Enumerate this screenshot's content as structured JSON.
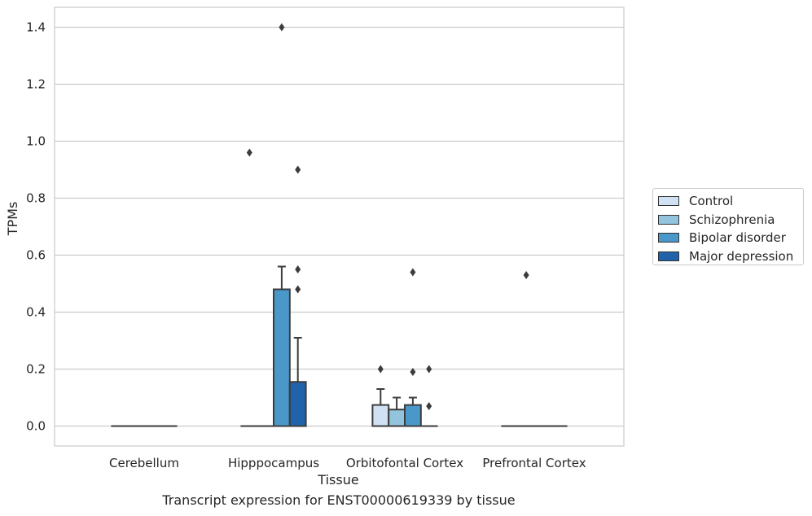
{
  "chart_data": {
    "type": "bar",
    "title": "",
    "caption": "Transcript expression for ENST00000619339 by tissue",
    "xlabel": "Tissue",
    "ylabel": "TPMs",
    "ylim": [
      -0.07,
      1.47
    ],
    "yticks": [
      "0.0",
      "0.2",
      "0.4",
      "0.6",
      "0.8",
      "1.0",
      "1.2",
      "1.4"
    ],
    "ytick_values": [
      0.0,
      0.2,
      0.4,
      0.6,
      0.8,
      1.0,
      1.2,
      1.4
    ],
    "grid": true,
    "legend_position": "right",
    "categories": [
      "Cerebellum",
      "Hipppocampus",
      "Orbitofontal Cortex",
      "Prefrontal Cortex"
    ],
    "series": [
      {
        "name": "Control",
        "color": "#cfe1f2",
        "values": [
          0.0,
          0.0,
          0.074,
          0.0
        ],
        "err_upper": [
          0.0,
          0.0,
          0.13,
          0.0
        ],
        "outliers": [
          [],
          [
            0.96
          ],
          [
            0.2
          ],
          []
        ]
      },
      {
        "name": "Schizophrenia",
        "color": "#93c4de",
        "values": [
          0.0,
          0.0,
          0.058,
          0.0
        ],
        "err_upper": [
          0.0,
          0.0,
          0.1,
          0.0
        ],
        "outliers": [
          [],
          [],
          [],
          [
            0.53
          ]
        ]
      },
      {
        "name": "Bipolar disorder",
        "color": "#4a98c9",
        "values": [
          0.0,
          0.48,
          0.074,
          0.0
        ],
        "err_upper": [
          0.0,
          0.56,
          0.1,
          0.0
        ],
        "outliers": [
          [],
          [
            1.4
          ],
          [
            0.54,
            0.19
          ],
          []
        ]
      },
      {
        "name": "Major depression",
        "color": "#2163aa",
        "values": [
          0.0,
          0.155,
          0.0,
          0.0
        ],
        "err_upper": [
          0.0,
          0.31,
          0.0,
          0.0
        ],
        "outliers": [
          [],
          [
            0.9,
            0.55,
            0.48
          ],
          [
            0.2,
            0.07
          ],
          []
        ]
      }
    ]
  }
}
